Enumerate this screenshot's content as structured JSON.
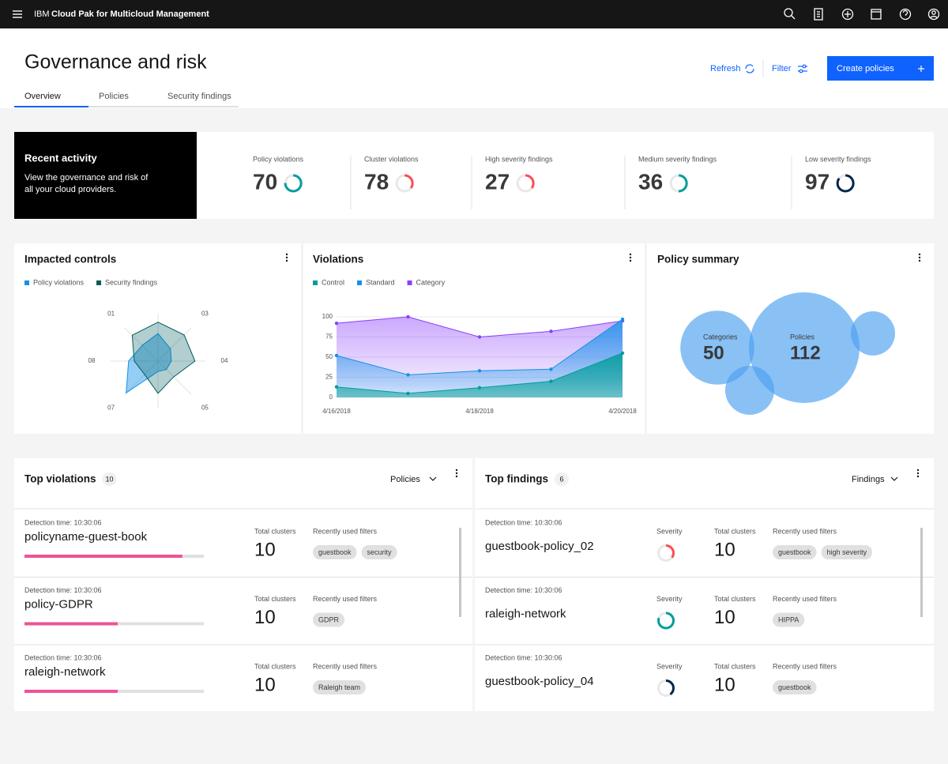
{
  "header": {
    "brand": "IBM",
    "product": "Cloud Pak for Multicloud Management"
  },
  "page": {
    "title": "Governance and risk",
    "actions": {
      "refresh": "Refresh",
      "filter": "Filter",
      "create": "Create policies"
    },
    "tabs": [
      "Overview",
      "Policies",
      "Security findings"
    ]
  },
  "recent_activity": {
    "title": "Recent activity",
    "description": "View the governance and risk of all your cloud providers.",
    "stats": [
      {
        "label": "Policy violations",
        "value": 70,
        "color": "#009d9a"
      },
      {
        "label": "Cluster violations",
        "value": 78,
        "color": "#fa4d56"
      },
      {
        "label": "High severity findings",
        "value": 27,
        "color": "#fa4d56"
      },
      {
        "label": "Medium severity findings",
        "value": 36,
        "color": "#009d9a"
      },
      {
        "label": "Low severity findings",
        "value": 97,
        "color": "#012749"
      }
    ]
  },
  "chart_data": [
    {
      "type": "radar",
      "title": "Impacted controls",
      "categories": [
        "01",
        null,
        "03",
        "04",
        "05",
        null,
        "07",
        "08"
      ],
      "ylim": [
        0,
        100
      ],
      "series": [
        {
          "name": "Policy violations",
          "color": "#1192e8",
          "values": [
            47,
            58,
            37,
            28,
            25,
            22,
            95,
            62
          ]
        },
        {
          "name": "Security findings",
          "color": "#005d5d",
          "values": [
            77,
            82,
            78,
            78,
            47,
            68,
            40,
            50
          ]
        }
      ]
    },
    {
      "type": "area",
      "title": "Violations",
      "x": [
        "2018-04-16",
        "2018-04-17",
        "2018-04-18",
        "2018-04-19",
        "2018-04-20"
      ],
      "xlim": [
        "2018-04-16",
        "2018-04-20"
      ],
      "xticks": [
        {
          "value": "2018-04-16",
          "label": "4/16/2018"
        },
        {
          "value": "2018-04-18",
          "label": "4/18/2018"
        },
        {
          "value": "2018-04-20",
          "label": "4/20/2018"
        }
      ],
      "ylim": [
        0,
        100
      ],
      "yticks": [
        0,
        25,
        50,
        75,
        100
      ],
      "grid": true,
      "series": [
        {
          "name": "Control",
          "color": "#009d9a",
          "values": [
            13,
            5,
            12,
            20,
            55
          ]
        },
        {
          "name": "Standard",
          "color": "#1192e8",
          "values": [
            52,
            28,
            33,
            35,
            97
          ]
        },
        {
          "name": "Category",
          "color": "#8a3ffc",
          "values": [
            92,
            100,
            75,
            82,
            95
          ]
        }
      ]
    },
    {
      "type": "bubble",
      "title": "Policy summary",
      "categories": [
        "Categories",
        "Policies"
      ],
      "values": [
        50,
        112
      ],
      "color": "#4a9ff0"
    }
  ],
  "top_violations": {
    "title": "Top violations",
    "count": 10,
    "dropdown": "Policies",
    "items": [
      {
        "detection": "Detection time: 10:30:06",
        "name": "policyname-guest-book",
        "clusters_label": "Total clusters",
        "clusters": 10,
        "filters_label": "Recently used filters",
        "filters": [
          "guestbook",
          "security"
        ]
      },
      {
        "detection": "Detection time: 10:30:06",
        "name": "policy-GDPR",
        "clusters_label": "Total clusters",
        "clusters": 10,
        "filters_label": "Recently used filters",
        "filters": [
          "GDPR"
        ]
      },
      {
        "detection": "Detection time: 10:30:06",
        "name": "raleigh-network",
        "clusters_label": "Total clusters",
        "clusters": 10,
        "filters_label": "Recently used filters",
        "filters": [
          "Raleigh team"
        ]
      }
    ]
  },
  "top_findings": {
    "title": "Top findings",
    "count": 6,
    "dropdown": "Findings",
    "items": [
      {
        "detection": "Detection time: 10:30:06",
        "name": "guestbook-policy_02",
        "severity_label": "Severity",
        "severity_color": "#fa4d56",
        "clusters_label": "Total clusters",
        "clusters": 10,
        "filters_label": "Recently used filters",
        "filters": [
          "guestbook",
          "high severity"
        ]
      },
      {
        "detection": "Detection time: 10:30:06",
        "name": "raleigh-network",
        "severity_label": "Severity",
        "severity_color": "#009d9a",
        "clusters_label": "Total clusters",
        "clusters": 10,
        "filters_label": "Recently used filters",
        "filters": [
          "HIPPA"
        ]
      },
      {
        "detection": "Detection time: 10:30:06",
        "name": "guestbook-policy_04",
        "severity_label": "Severity",
        "severity_color": "#012749",
        "clusters_label": "Total clusters",
        "clusters": 10,
        "filters_label": "Recently used filters",
        "filters": [
          "guestbook"
        ]
      }
    ]
  }
}
